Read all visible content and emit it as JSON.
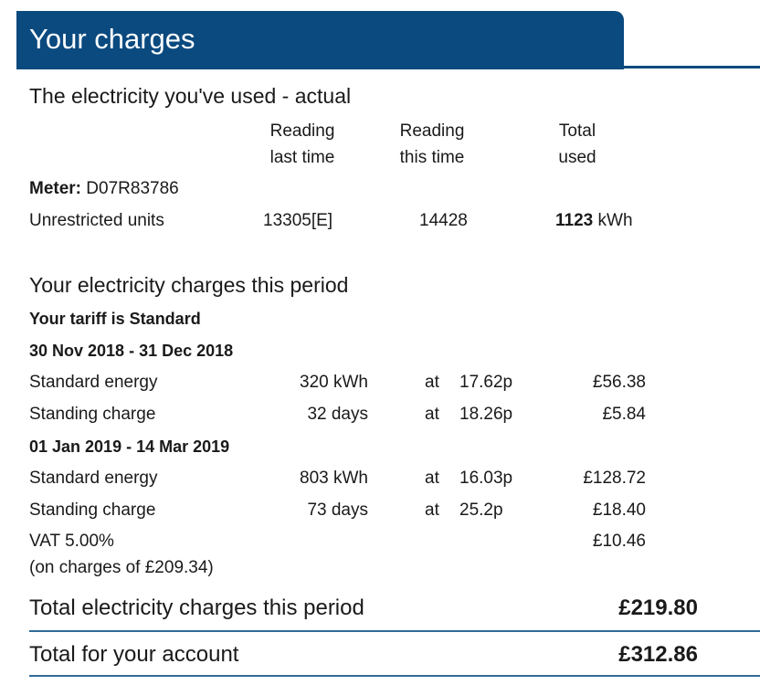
{
  "header": {
    "title": "Your charges"
  },
  "usage": {
    "title": "The electricity you've used - actual",
    "columns": [
      "Reading last time",
      "Reading this time",
      "Total used"
    ],
    "meter": {
      "label": "Meter:",
      "value": "D07R83786"
    },
    "row": {
      "label": "Unrestricted units",
      "last": "13305[E]",
      "this": "14428",
      "total": "1123",
      "unit": "kWh"
    }
  },
  "charges": {
    "title": "Your electricity charges this period",
    "tariff": "Your tariff is Standard",
    "periods": [
      {
        "label": "30 Nov 2018 - 31 Dec 2018",
        "rows": [
          [
            "Standard energy",
            "320 kWh",
            "at",
            "17.62p",
            "£56.38"
          ],
          [
            "Standing charge",
            "32 days",
            "at",
            "18.26p",
            "£5.84"
          ]
        ]
      },
      {
        "label": "01 Jan 2019 - 14 Mar 2019",
        "rows": [
          [
            "Standard energy",
            "803 kWh",
            "at",
            "16.03p",
            "£128.72"
          ],
          [
            "Standing charge",
            "73 days",
            "at",
            "25.2p",
            "£18.40"
          ]
        ]
      }
    ],
    "vat": {
      "label": "VAT 5.00%",
      "note": "(on charges of £209.34)",
      "amount": "£10.46"
    }
  },
  "totals": [
    {
      "label": "Total electricity charges this period",
      "amount": "£219.80"
    },
    {
      "label": "Total for your account",
      "amount": "£312.86"
    }
  ]
}
